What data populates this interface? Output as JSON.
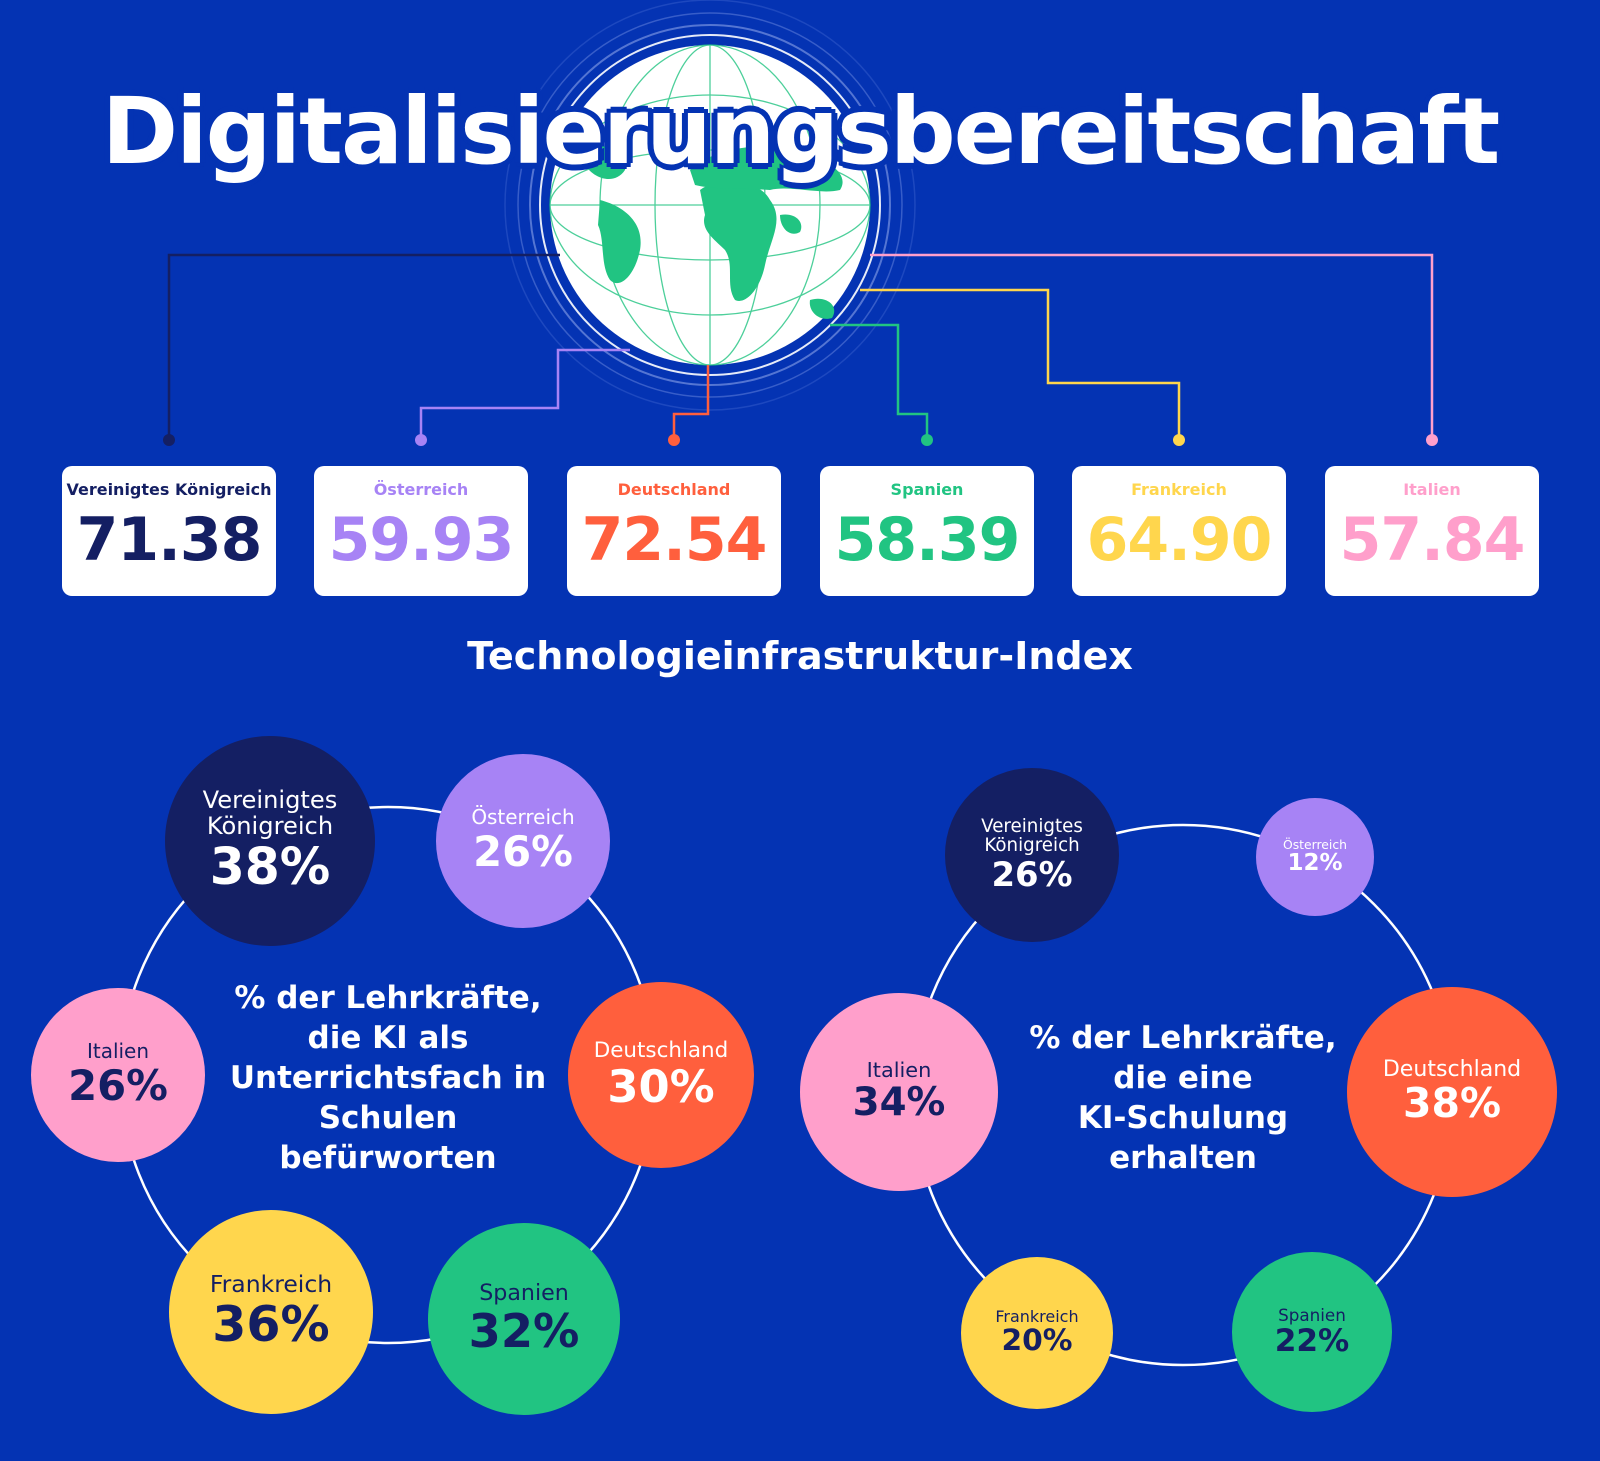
{
  "title": "Digitalisierungsbereitschaft",
  "colors": {
    "background": "#0433b3",
    "uk": "#141f63",
    "austria": "#a783f5",
    "germany": "#ff5f3d",
    "spain": "#21c482",
    "france": "#ffd64d",
    "italy": "#ff9fcb",
    "globe_land": "#21c482",
    "globe_ocean": "#ffffff"
  },
  "chart_data": [
    {
      "type": "table",
      "title": "Technologieinfrastruktur-Index",
      "categories": [
        "Vereinigtes Königreich",
        "Österreich",
        "Deutschland",
        "Spanien",
        "Frankreich",
        "Italien"
      ],
      "values": [
        "71.38",
        "59.93",
        "72.54",
        "58.39",
        "64.90",
        "57.84"
      ]
    },
    {
      "type": "bubble",
      "title": "% der Lehrkräfte, die KI als Unterrichtsfach in Schulen befürworten",
      "title_lines": [
        "% der Lehrkräfte,",
        "die KI als",
        "Unterrichtsfach in",
        "Schulen",
        "befürworten"
      ],
      "categories": [
        "Vereinigtes Königreich",
        "Österreich",
        "Deutschland",
        "Spanien",
        "Frankreich",
        "Italien"
      ],
      "label_lines": [
        [
          "Vereinigtes",
          "Königreich"
        ],
        [
          "Österreich"
        ],
        [
          "Deutschland"
        ],
        [
          "Spanien"
        ],
        [
          "Frankreich"
        ],
        [
          "Italien"
        ]
      ],
      "values": [
        38,
        26,
        30,
        32,
        36,
        26
      ],
      "value_labels": [
        "38%",
        "26%",
        "30%",
        "32%",
        "36%",
        "26%"
      ]
    },
    {
      "type": "bubble",
      "title": "% der Lehrkräfte, die eine KI-Schulung erhalten",
      "title_lines": [
        "% der Lehrkräfte,",
        "die eine",
        "KI-Schulung",
        "erhalten"
      ],
      "categories": [
        "Vereinigtes Königreich",
        "Österreich",
        "Deutschland",
        "Spanien",
        "Frankreich",
        "Italien"
      ],
      "label_lines": [
        [
          "Vereinigtes",
          "Königreich"
        ],
        [
          "Österreich"
        ],
        [
          "Deutschland"
        ],
        [
          "Spanien"
        ],
        [
          "Frankreich"
        ],
        [
          "Italien"
        ]
      ],
      "values": [
        26,
        12,
        38,
        22,
        20,
        34
      ],
      "value_labels": [
        "26%",
        "12%",
        "38%",
        "22%",
        "20%",
        "34%"
      ]
    }
  ]
}
